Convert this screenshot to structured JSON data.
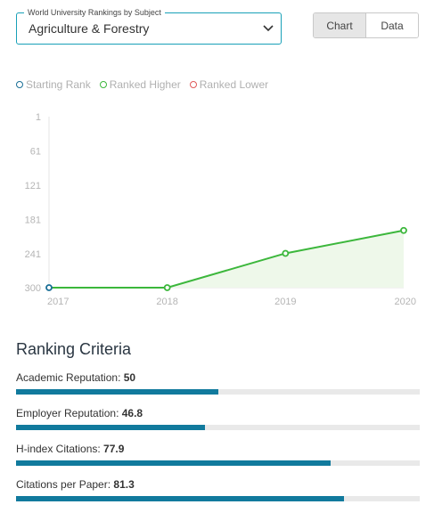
{
  "subject_select": {
    "legend": "World University Rankings by Subject",
    "value": "Agriculture & Forestry"
  },
  "view_toggle": {
    "chart_label": "Chart",
    "data_label": "Data",
    "active": "chart"
  },
  "legend": {
    "items": [
      {
        "label": "Starting Rank",
        "color": "#1a6f96"
      },
      {
        "label": "Ranked Higher",
        "color": "#3cb73c"
      },
      {
        "label": "Ranked Lower",
        "color": "#e05a5a"
      }
    ]
  },
  "chart_data": {
    "type": "area",
    "categories": [
      "2017",
      "2018",
      "2019",
      "2020"
    ],
    "series": [
      {
        "values": [
          300,
          300,
          240,
          200
        ]
      }
    ],
    "yticks": [
      "1",
      "61",
      "121",
      "181",
      "241",
      "300"
    ],
    "ylim": [
      1,
      300
    ],
    "y_inverted": true,
    "line_color": "#3cb73c",
    "fill_color": "#eef8ea",
    "starting_marker_color": "#1a6f96",
    "xlabel": "",
    "ylabel": "",
    "grid": false
  },
  "criteria": {
    "title": "Ranking Criteria",
    "bar_color": "#117a9d",
    "track_color": "#e9e9e9",
    "items": [
      {
        "label": "Academic Reputation",
        "value": "50",
        "score": 50
      },
      {
        "label": "Employer Reputation",
        "value": "46.8",
        "score": 46.8
      },
      {
        "label": "H-index Citations",
        "value": "77.9",
        "score": 77.9
      },
      {
        "label": "Citations per Paper",
        "value": "81.3",
        "score": 81.3
      }
    ]
  }
}
